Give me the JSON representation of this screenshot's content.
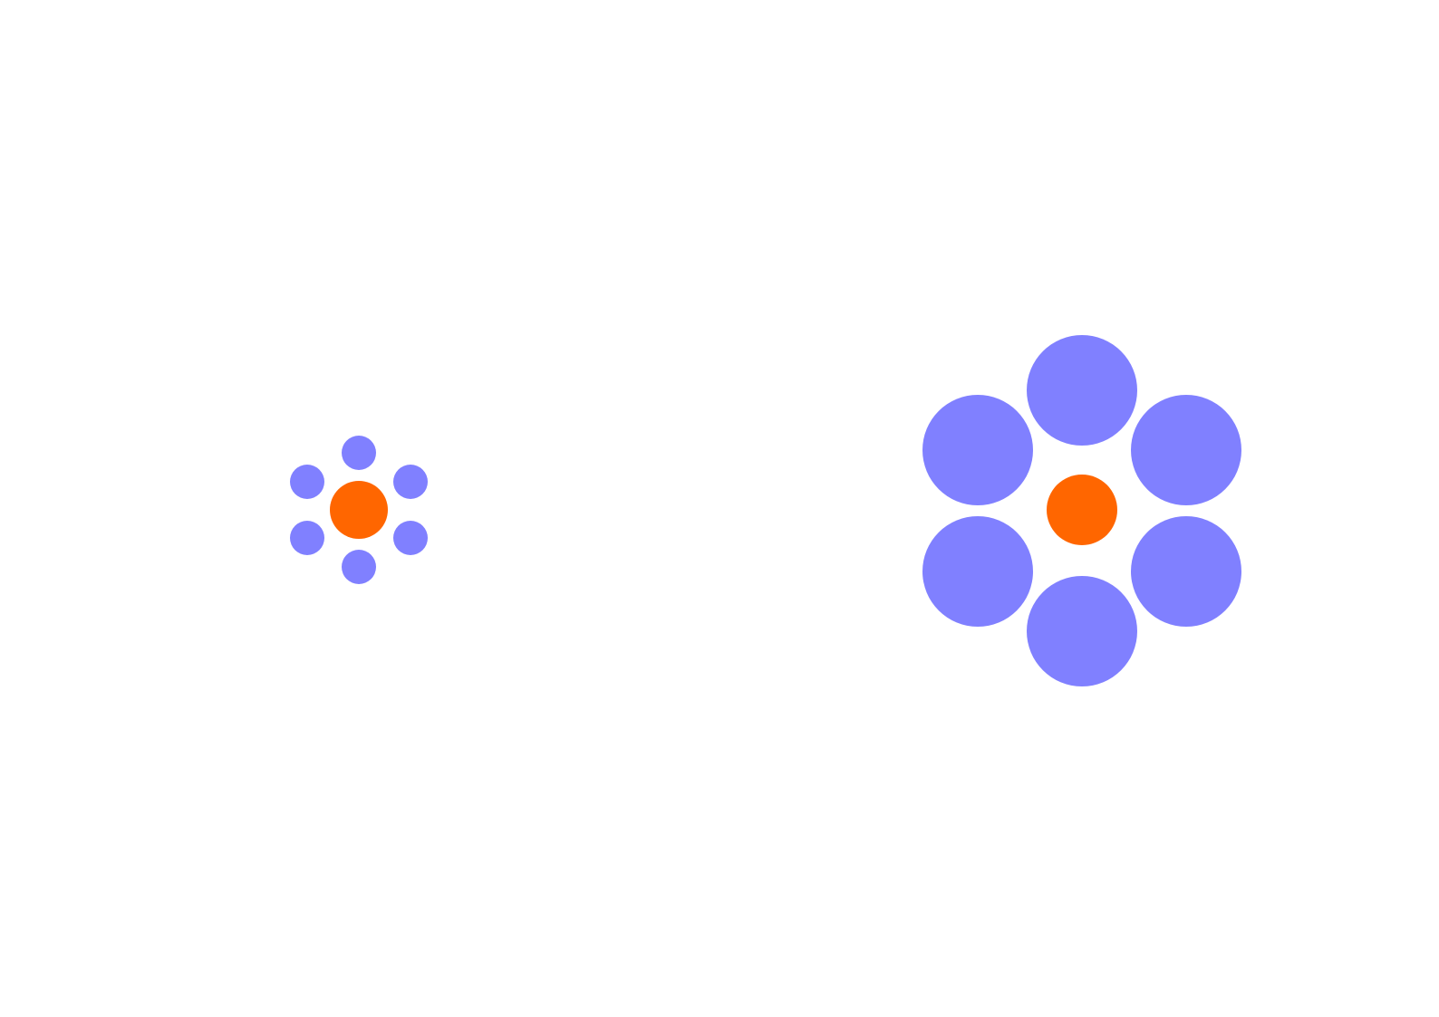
{
  "colors": {
    "background": "#ffffff",
    "center": "#ff6600",
    "surround": "#8080ff"
  },
  "figures": [
    {
      "name": "small-surround-cluster",
      "center_icon": "filled-circle-icon",
      "surround_icon": "filled-circle-icon",
      "surround_count": 6
    },
    {
      "name": "large-surround-cluster",
      "center_icon": "filled-circle-icon",
      "surround_icon": "filled-circle-icon",
      "surround_count": 6
    }
  ]
}
